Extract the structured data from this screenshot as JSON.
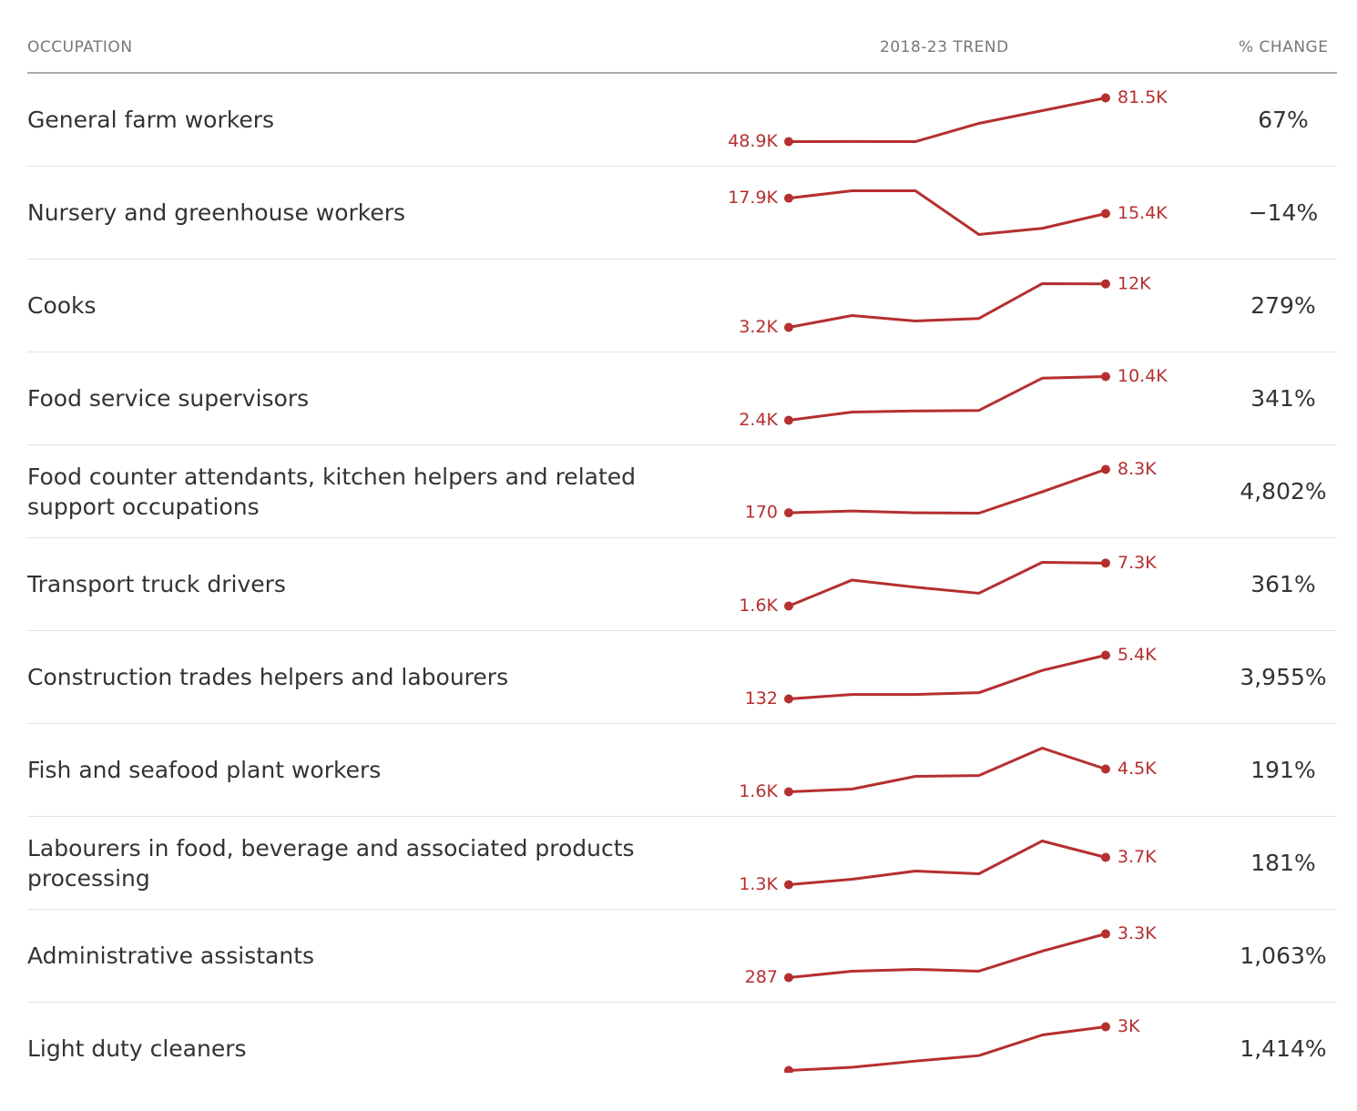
{
  "header": {
    "occupation": "OCCUPATION",
    "trend": "2018-23 TREND",
    "change": "% CHANGE"
  },
  "color": "#b52f2f",
  "rows": [
    {
      "occupation": "General farm workers",
      "trend": {
        "values": [
          48900,
          49000,
          48900,
          62500,
          72000,
          81500
        ],
        "start_label": "48.9K",
        "end_label": "81.5K"
      },
      "change": "67%"
    },
    {
      "occupation": "Nursery and greenhouse workers",
      "trend": {
        "values": [
          17900,
          19100,
          19100,
          12000,
          13000,
          15400
        ],
        "start_label": "17.9K",
        "end_label": "15.4K"
      },
      "change": "−14%"
    },
    {
      "occupation": "Cooks",
      "trend": {
        "values": [
          3200,
          5600,
          4500,
          5000,
          12050,
          12000
        ],
        "start_label": "3.2K",
        "end_label": "12K"
      },
      "change": "279%"
    },
    {
      "occupation": "Food service supervisors",
      "trend": {
        "values": [
          2400,
          3900,
          4100,
          4200,
          10100,
          10400
        ],
        "start_label": "2.4K",
        "end_label": "10.4K"
      },
      "change": "341%"
    },
    {
      "occupation": "Food counter attendants, kitchen helpers and related support occupations",
      "trend": {
        "values": [
          170,
          500,
          170,
          100,
          4100,
          8300
        ],
        "start_label": "170",
        "end_label": "8.3K"
      },
      "change": "4,802%"
    },
    {
      "occupation": "Transport truck drivers",
      "trend": {
        "values": [
          1600,
          5050,
          4100,
          3300,
          7400,
          7300
        ],
        "start_label": "1.6K",
        "end_label": "7.3K"
      },
      "change": "361%"
    },
    {
      "occupation": "Construction trades helpers and labourers",
      "trend": {
        "values": [
          132,
          670,
          670,
          880,
          3570,
          5400
        ],
        "start_label": "132",
        "end_label": "5.4K"
      },
      "change": "3,955%"
    },
    {
      "occupation": "Fish and seafood plant workers",
      "trend": {
        "values": [
          1600,
          1950,
          3570,
          3680,
          7170,
          4500
        ],
        "start_label": "1.6K",
        "end_label": "4.5K"
      },
      "change": "191%"
    },
    {
      "occupation": "Labourers in food, beverage and associated products processing",
      "trend": {
        "values": [
          1300,
          1780,
          2500,
          2260,
          5140,
          3700
        ],
        "start_label": "1.3K",
        "end_label": "3.7K"
      },
      "change": "181%"
    },
    {
      "occupation": "Administrative assistants",
      "trend": {
        "values": [
          287,
          727,
          853,
          727,
          2110,
          3300
        ],
        "start_label": "287",
        "end_label": "3.3K"
      },
      "change": "1,063%"
    },
    {
      "occupation": "Light duty cleaners",
      "trend": {
        "values": [
          198,
          400,
          800,
          1150,
          2475,
          3000
        ],
        "end_label": "3K"
      },
      "change": "1,414%"
    }
  ]
}
